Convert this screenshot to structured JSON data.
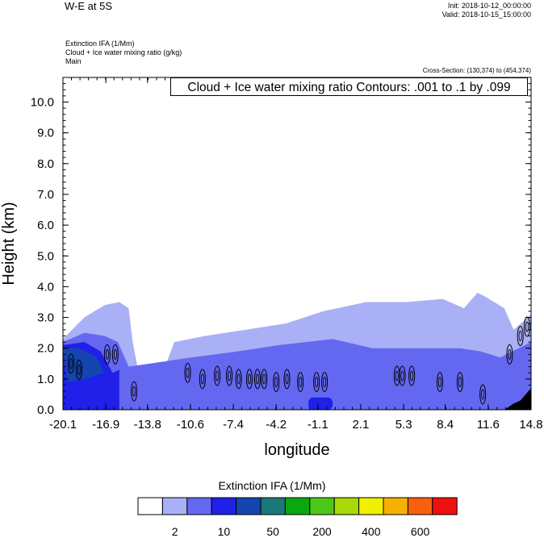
{
  "header": {
    "title": "W-E at 5S",
    "init": "Init: 2018-10-12_00:00:00",
    "valid": "Valid: 2018-10-15_15:00:00",
    "fields": [
      "Extinction IFA   (1/Mm)",
      "Cloud + Ice water mixing ratio   (g/kg)",
      "Main"
    ],
    "cross_section": "Cross-Section: (130,374) to (454,374)",
    "contour_note": "Cloud + Ice water mixing ratio Contours: .001 to .1 by .099"
  },
  "colorbar": {
    "title": "Extinction IFA  (1/Mm)",
    "colors": [
      "#ffffff",
      "#aab0f5",
      "#6468f0",
      "#2020e8",
      "#1445b0",
      "#1a7878",
      "#0aa810",
      "#4cc818",
      "#a8d808",
      "#f0f000",
      "#f8b000",
      "#f86010",
      "#f01010"
    ],
    "labels": [
      {
        "text": "2",
        "after_box": 1
      },
      {
        "text": "10",
        "after_box": 3
      },
      {
        "text": "50",
        "after_box": 5
      },
      {
        "text": "200",
        "after_box": 7
      },
      {
        "text": "400",
        "after_box": 9
      },
      {
        "text": "600",
        "after_box": 11
      }
    ]
  },
  "chart_data": {
    "type": "heatmap",
    "title": "W-E at 5S",
    "xlabel": "longitude",
    "ylabel": "Height (km)",
    "xlim": [
      -20.1,
      14.8
    ],
    "ylim": [
      0.0,
      10.8
    ],
    "x_ticks": [
      "-20.1",
      "-16.9",
      "-13.8",
      "-10.6",
      "-7.4",
      "-4.2",
      "-1.1",
      "2.1",
      "5.3",
      "8.4",
      "11.6",
      "14.8"
    ],
    "y_ticks": [
      "0.0",
      "1.0",
      "2.0",
      "3.0",
      "4.0",
      "5.0",
      "6.0",
      "7.0",
      "8.0",
      "9.0",
      "10.0"
    ],
    "shaded_field": "Extinction IFA (1/Mm)",
    "contour_field": "Cloud + Ice water mixing ratio (g/kg)",
    "layers": [
      {
        "level": "2",
        "color": "#aab0f5",
        "top_profile": [
          [
            -20.1,
            2.3
          ],
          [
            -18.5,
            3.0
          ],
          [
            -17.0,
            3.4
          ],
          [
            -15.9,
            3.5
          ],
          [
            -15.2,
            3.3
          ],
          [
            -14.9,
            2.2
          ],
          [
            -14.5,
            1.3
          ],
          [
            -13.5,
            1.2
          ],
          [
            -12.4,
            1.5
          ],
          [
            -11.8,
            2.2
          ],
          [
            -9.5,
            2.4
          ],
          [
            -6.5,
            2.6
          ],
          [
            -3.5,
            2.8
          ],
          [
            -0.7,
            3.2
          ],
          [
            2.5,
            3.5
          ],
          [
            5.5,
            3.5
          ],
          [
            8.2,
            3.6
          ],
          [
            9.8,
            3.3
          ],
          [
            10.8,
            3.8
          ],
          [
            11.3,
            3.7
          ],
          [
            12.8,
            3.3
          ],
          [
            13.5,
            2.6
          ],
          [
            14.8,
            3.1
          ]
        ]
      },
      {
        "level": "5",
        "color": "#6468f0",
        "top_profile": [
          [
            -20.1,
            2.2
          ],
          [
            -18.5,
            2.5
          ],
          [
            -17.0,
            2.4
          ],
          [
            -16.0,
            2.2
          ],
          [
            -15.2,
            1.4
          ],
          [
            -10.5,
            1.7
          ],
          [
            -7.0,
            1.9
          ],
          [
            -4.0,
            2.1
          ],
          [
            0.0,
            2.3
          ],
          [
            3.0,
            2.0
          ],
          [
            6.5,
            2.0
          ],
          [
            9.5,
            2.0
          ],
          [
            11.0,
            1.9
          ],
          [
            12.5,
            1.7
          ],
          [
            14.8,
            2.2
          ]
        ]
      },
      {
        "level": "10",
        "color": "#2020e8",
        "top_profile": [
          [
            -20.1,
            2.1
          ],
          [
            -18.5,
            2.2
          ],
          [
            -17.3,
            1.9
          ],
          [
            -16.4,
            1.2
          ],
          [
            -15.9,
            1.3
          ]
        ],
        "blob": {
          "x": [
            -1.8,
            0.0
          ],
          "y": [
            0.0,
            0.4
          ]
        }
      },
      {
        "level": "20",
        "color": "#1445b0",
        "top_profile": [
          [
            -20.1,
            2.0
          ],
          [
            -18.9,
            2.0
          ],
          [
            -17.6,
            1.7
          ],
          [
            -17.0,
            1.2
          ],
          [
            -18.5,
            1.0
          ],
          [
            -19.8,
            0.9
          ]
        ]
      },
      {
        "level": "terrain",
        "color": "#000000",
        "top_profile": [
          [
            12.8,
            0.0
          ],
          [
            13.5,
            0.2
          ],
          [
            14.0,
            0.3
          ],
          [
            14.4,
            0.5
          ],
          [
            14.8,
            0.7
          ]
        ]
      }
    ],
    "contours": [
      {
        "x": -19.5,
        "y": 1.5
      },
      {
        "x": -18.9,
        "y": 1.3
      },
      {
        "x": -16.8,
        "y": 1.8
      },
      {
        "x": -16.2,
        "y": 1.8
      },
      {
        "x": -14.8,
        "y": 0.6
      },
      {
        "x": -10.8,
        "y": 1.2
      },
      {
        "x": -9.7,
        "y": 1.0
      },
      {
        "x": -8.6,
        "y": 1.1
      },
      {
        "x": -7.7,
        "y": 1.1
      },
      {
        "x": -7.0,
        "y": 1.0
      },
      {
        "x": -6.2,
        "y": 1.0
      },
      {
        "x": -5.6,
        "y": 1.0
      },
      {
        "x": -5.1,
        "y": 1.0
      },
      {
        "x": -4.2,
        "y": 0.9
      },
      {
        "x": -3.4,
        "y": 1.0
      },
      {
        "x": -2.4,
        "y": 0.9
      },
      {
        "x": -1.2,
        "y": 0.9
      },
      {
        "x": -0.6,
        "y": 0.9
      },
      {
        "x": 4.8,
        "y": 1.1
      },
      {
        "x": 5.2,
        "y": 1.1
      },
      {
        "x": 5.9,
        "y": 1.1
      },
      {
        "x": 8.0,
        "y": 0.9
      },
      {
        "x": 9.5,
        "y": 0.9
      },
      {
        "x": 11.2,
        "y": 0.5
      },
      {
        "x": 13.2,
        "y": 1.8
      },
      {
        "x": 14.0,
        "y": 2.4
      },
      {
        "x": 14.5,
        "y": 2.7
      }
    ],
    "grid": false,
    "legend": "bottom"
  }
}
